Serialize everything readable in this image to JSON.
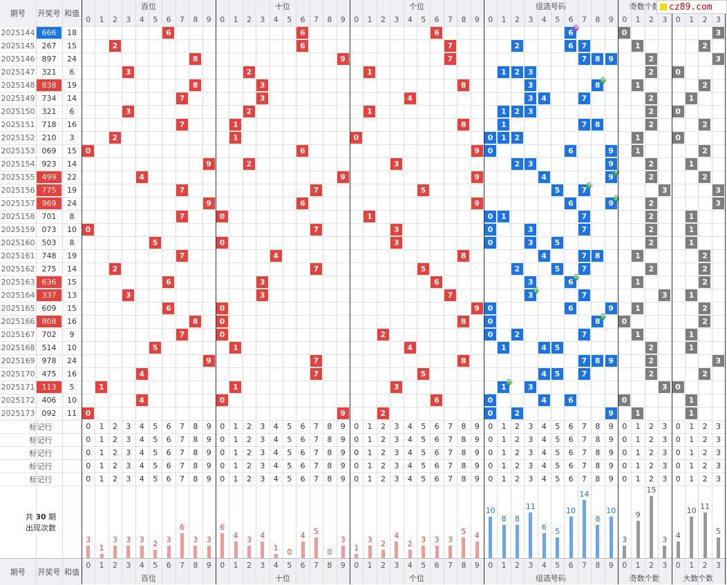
{
  "brand": {
    "text": "cz89.com",
    "color": "#d40000"
  },
  "headers": {
    "top": [
      "期号",
      "开奖号",
      "和值",
      "百位",
      "十位",
      "个位",
      "组选号码",
      "奇数个数",
      "大数个数"
    ],
    "digits_10": [
      "0",
      "1",
      "2",
      "3",
      "4",
      "5",
      "6",
      "7",
      "8",
      "9"
    ],
    "digits_4": [
      "0",
      "1",
      "2",
      "3"
    ],
    "mark_row_label": "标记行",
    "stats_title_pre": "共",
    "stats_title_num": "30",
    "stats_title_post": "期",
    "stats_sub": "出现次数"
  },
  "colors": {
    "red": "#e8413b",
    "blue": "#1a73e8",
    "gray": "#7d7d7d",
    "badge_green": "#2da44e",
    "badge_purple": "#b03adb",
    "bar_red": "#f19b97",
    "bar_blue": "#6aa6ee",
    "bar_gray": "#9a9a9a"
  },
  "rows": [
    {
      "issue": "2025144",
      "num": "666",
      "sum": "18",
      "hl": "blue",
      "odd": 0,
      "big": 3,
      "badge": {
        "d": 6,
        "n": "3",
        "c": "purple"
      }
    },
    {
      "issue": "2025145",
      "num": "267",
      "sum": "15",
      "hl": "",
      "odd": 1,
      "big": 2
    },
    {
      "issue": "2025146",
      "num": "897",
      "sum": "24",
      "hl": "",
      "odd": 2,
      "big": 3
    },
    {
      "issue": "2025147",
      "num": "321",
      "sum": "6",
      "hl": "",
      "odd": 2,
      "big": 0
    },
    {
      "issue": "2025148",
      "num": "838",
      "sum": "19",
      "hl": "red",
      "odd": 1,
      "big": 2,
      "badge": {
        "d": 8,
        "n": "2",
        "c": "green"
      }
    },
    {
      "issue": "2025149",
      "num": "734",
      "sum": "14",
      "hl": "",
      "odd": 2,
      "big": 1
    },
    {
      "issue": "2025150",
      "num": "321",
      "sum": "6",
      "hl": "",
      "odd": 2,
      "big": 0
    },
    {
      "issue": "2025151",
      "num": "718",
      "sum": "16",
      "hl": "",
      "odd": 2,
      "big": 2
    },
    {
      "issue": "2025152",
      "num": "210",
      "sum": "3",
      "hl": "",
      "odd": 1,
      "big": 0
    },
    {
      "issue": "2025153",
      "num": "069",
      "sum": "15",
      "hl": "",
      "odd": 1,
      "big": 2
    },
    {
      "issue": "2025154",
      "num": "923",
      "sum": "14",
      "hl": "",
      "odd": 2,
      "big": 1
    },
    {
      "issue": "2025155",
      "num": "499",
      "sum": "22",
      "hl": "red",
      "odd": 2,
      "big": 2,
      "badge": {
        "d": 9,
        "n": "2",
        "c": "green"
      }
    },
    {
      "issue": "2025156",
      "num": "775",
      "sum": "19",
      "hl": "red",
      "odd": 3,
      "big": 3,
      "badge": {
        "d": 7,
        "n": "2",
        "c": "green"
      }
    },
    {
      "issue": "2025157",
      "num": "969",
      "sum": "24",
      "hl": "red",
      "odd": 2,
      "big": 3,
      "badge": {
        "d": 9,
        "n": "2",
        "c": "green"
      }
    },
    {
      "issue": "2025158",
      "num": "701",
      "sum": "8",
      "hl": "",
      "odd": 2,
      "big": 1
    },
    {
      "issue": "2025159",
      "num": "073",
      "sum": "10",
      "hl": "",
      "odd": 2,
      "big": 1
    },
    {
      "issue": "2025160",
      "num": "503",
      "sum": "8",
      "hl": "",
      "odd": 2,
      "big": 1
    },
    {
      "issue": "2025161",
      "num": "748",
      "sum": "19",
      "hl": "",
      "odd": 1,
      "big": 2
    },
    {
      "issue": "2025162",
      "num": "275",
      "sum": "14",
      "hl": "",
      "odd": 2,
      "big": 2
    },
    {
      "issue": "2025163",
      "num": "636",
      "sum": "15",
      "hl": "red",
      "odd": 1,
      "big": 2,
      "badge": {
        "d": 6,
        "n": "2",
        "c": "green"
      }
    },
    {
      "issue": "2025164",
      "num": "337",
      "sum": "13",
      "hl": "red",
      "odd": 3,
      "big": 1,
      "badge": {
        "d": 3,
        "n": "2",
        "c": "green"
      }
    },
    {
      "issue": "2025165",
      "num": "609",
      "sum": "15",
      "hl": "",
      "odd": 1,
      "big": 2
    },
    {
      "issue": "2025166",
      "num": "808",
      "sum": "16",
      "hl": "red",
      "odd": 0,
      "big": 2,
      "badge": {
        "d": 8,
        "n": "2",
        "c": "green"
      }
    },
    {
      "issue": "2025167",
      "num": "702",
      "sum": "9",
      "hl": "",
      "odd": 1,
      "big": 1
    },
    {
      "issue": "2025168",
      "num": "514",
      "sum": "10",
      "hl": "",
      "odd": 2,
      "big": 1
    },
    {
      "issue": "2025169",
      "num": "978",
      "sum": "24",
      "hl": "",
      "odd": 2,
      "big": 3
    },
    {
      "issue": "2025170",
      "num": "475",
      "sum": "16",
      "hl": "",
      "odd": 2,
      "big": 2
    },
    {
      "issue": "2025171",
      "num": "113",
      "sum": "5",
      "hl": "red",
      "odd": 3,
      "big": 0,
      "badge": {
        "d": 1,
        "n": "2",
        "c": "green"
      }
    },
    {
      "issue": "2025172",
      "num": "406",
      "sum": "10",
      "hl": "",
      "odd": 0,
      "big": 1
    },
    {
      "issue": "2025173",
      "num": "092",
      "sum": "11",
      "hl": "",
      "odd": 1,
      "big": 1
    }
  ],
  "stats": {
    "hundreds": [
      3,
      1,
      3,
      3,
      3,
      2,
      3,
      6,
      3,
      3
    ],
    "tens": [
      6,
      4,
      3,
      4,
      1,
      0,
      4,
      5,
      0,
      3
    ],
    "ones": [
      1,
      3,
      2,
      4,
      2,
      3,
      3,
      3,
      5,
      4
    ],
    "group": [
      10,
      8,
      8,
      11,
      6,
      5,
      10,
      14,
      8,
      10
    ],
    "odd": [
      3,
      9,
      15,
      3
    ],
    "big": [
      4,
      10,
      11,
      5
    ]
  }
}
